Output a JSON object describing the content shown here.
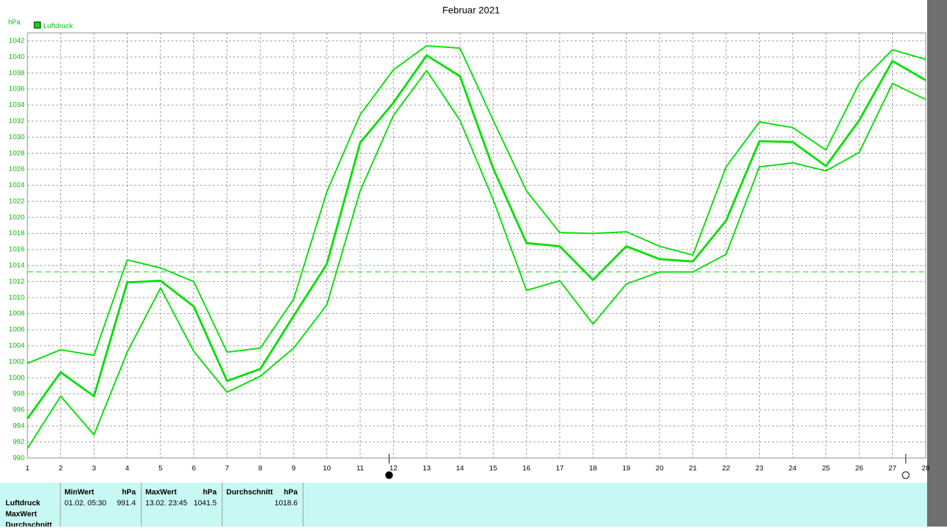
{
  "chart_data": {
    "type": "line",
    "title": "Februar 2021",
    "y_label": "hPa",
    "x": [
      1,
      2,
      3,
      4,
      5,
      6,
      7,
      8,
      9,
      10,
      11,
      12,
      13,
      14,
      15,
      16,
      17,
      18,
      19,
      20,
      21,
      22,
      23,
      24,
      25,
      26,
      27,
      28
    ],
    "xlim": [
      1,
      28
    ],
    "xticks": [
      1,
      2,
      3,
      4,
      5,
      6,
      7,
      8,
      9,
      10,
      11,
      12,
      13,
      14,
      15,
      16,
      17,
      18,
      19,
      20,
      21,
      22,
      23,
      24,
      25,
      26,
      27,
      28
    ],
    "ylim": [
      990,
      1043
    ],
    "yticks": [
      990,
      992,
      994,
      996,
      998,
      1000,
      1002,
      1004,
      1006,
      1008,
      1010,
      1012,
      1014,
      1016,
      1018,
      1020,
      1022,
      1024,
      1026,
      1028,
      1030,
      1032,
      1034,
      1036,
      1038,
      1040,
      1042
    ],
    "grid": true,
    "legend": "top-left",
    "hline": 1013.2,
    "series": [
      {
        "name": "Luftdruck",
        "color": "#00e000",
        "width": 3,
        "values": [
          994.9,
          1000.7,
          997.7,
          1011.9,
          1012.1,
          1008.9,
          999.6,
          1001.1,
          1007.7,
          1014.2,
          1029.3,
          1034.3,
          1040.2,
          1037.6,
          1026.1,
          1016.8,
          1016.4,
          1012.2,
          1016.4,
          1014.8,
          1014.5,
          1019.6,
          1029.5,
          1029.4,
          1026.4,
          1032.1,
          1039.5,
          1037.1
        ]
      },
      {
        "color": "#00e000",
        "width": 2,
        "values": [
          1001.8,
          1003.5,
          1002.8,
          1014.7,
          1013.7,
          1012.0,
          1003.2,
          1003.7,
          1009.8,
          1023.2,
          1032.8,
          1038.4,
          1041.4,
          1041.1,
          1032.1,
          1023.3,
          1018.1,
          1018.0,
          1018.2,
          1016.4,
          1015.3,
          1026.3,
          1031.9,
          1031.2,
          1028.4,
          1036.7,
          1040.9,
          1039.7
        ]
      },
      {
        "color": "#00e000",
        "width": 2,
        "values": [
          991.2,
          997.7,
          992.9,
          1003.2,
          1011.2,
          1003.3,
          998.2,
          1000.2,
          1003.7,
          1009.1,
          1023.3,
          1032.7,
          1038.3,
          1032.1,
          1022.2,
          1010.9,
          1012.1,
          1006.7,
          1011.7,
          1013.2,
          1013.2,
          1015.4,
          1026.3,
          1026.8,
          1025.8,
          1028.1,
          1036.7,
          1034.7
        ]
      }
    ],
    "moon_phases": [
      {
        "x": 11.87,
        "fill": "#000000"
      },
      {
        "x": 27.4,
        "fill": "#ffffff"
      }
    ],
    "stats_table": {
      "row_labels": [
        "Luftdruck",
        "MaxWert",
        "Durchschnitt"
      ],
      "columns": [
        {
          "header": "MinWert",
          "unit": "hPa",
          "when": "01.02.  05:30",
          "value": 991.4
        },
        {
          "header": "MaxWert",
          "unit": "hPa",
          "when": "13.02.  23:45",
          "value": 1041.5
        },
        {
          "header": "Durchschnitt",
          "unit": "hPa",
          "value": 1018.6
        }
      ]
    }
  }
}
